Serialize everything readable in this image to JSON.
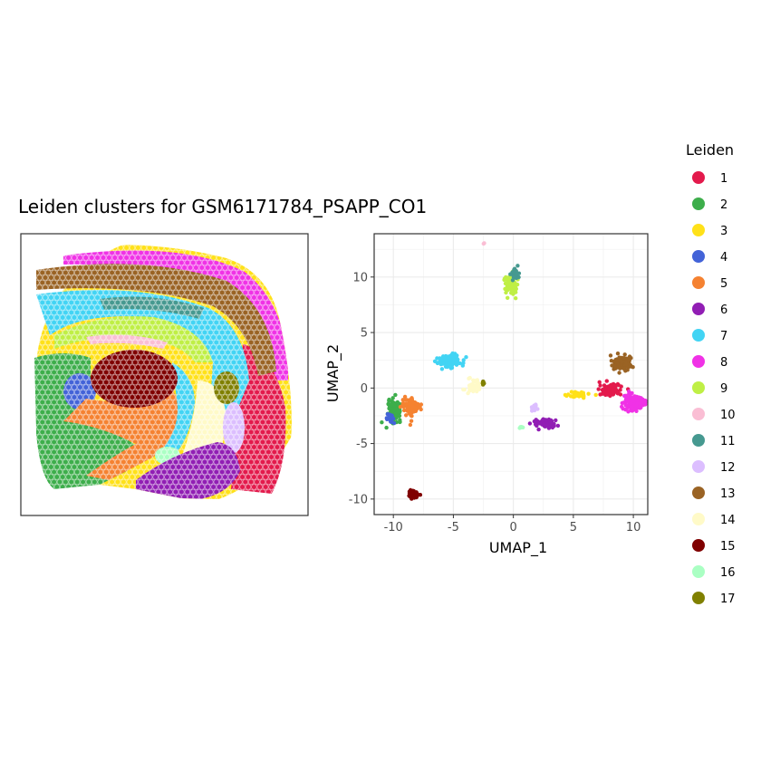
{
  "chart_data": [
    {
      "type": "scatter",
      "panel": "spatial",
      "title": "Leiden clusters for GSM6171784_PSAPP_CO1",
      "xlabel": "",
      "ylabel": "",
      "grid": false,
      "axes_visible": false
    },
    {
      "type": "scatter",
      "panel": "umap",
      "title": "",
      "xlabel": "UMAP_1",
      "ylabel": "UMAP_2",
      "xlim": [
        -11.6,
        11.2
      ],
      "ylim": [
        -11.4,
        13.9
      ],
      "x_ticks": [
        -10,
        -5,
        0,
        5,
        10
      ],
      "y_ticks": [
        -10,
        -5,
        0,
        5,
        10
      ],
      "grid": true,
      "clusters": [
        {
          "id": "1",
          "center": [
            8.0,
            -0.2
          ],
          "spread": [
            0.8,
            0.5
          ],
          "n": 160
        },
        {
          "id": "2",
          "center": [
            -9.9,
            -2.0
          ],
          "spread": [
            0.5,
            0.9
          ],
          "n": 130
        },
        {
          "id": "3",
          "center": [
            5.3,
            -0.6
          ],
          "spread": [
            1.0,
            0.25
          ],
          "n": 40
        },
        {
          "id": "4",
          "center": [
            -10.2,
            -2.8
          ],
          "spread": [
            0.3,
            0.4
          ],
          "n": 30
        },
        {
          "id": "5",
          "center": [
            -8.5,
            -1.7
          ],
          "spread": [
            0.8,
            0.8
          ],
          "n": 90
        },
        {
          "id": "6",
          "center": [
            2.6,
            -3.2
          ],
          "spread": [
            1.0,
            0.5
          ],
          "n": 60
        },
        {
          "id": "7",
          "center": [
            -5.3,
            2.5
          ],
          "spread": [
            1.0,
            0.6
          ],
          "n": 110
        },
        {
          "id": "8",
          "center": [
            10.0,
            -1.3
          ],
          "spread": [
            0.8,
            0.7
          ],
          "n": 150
        },
        {
          "id": "9",
          "center": [
            -0.2,
            9.3
          ],
          "spread": [
            0.5,
            0.9
          ],
          "n": 70
        },
        {
          "id": "10",
          "center": [
            -2.4,
            13.1
          ],
          "spread": [
            0.1,
            0.1
          ],
          "n": 2
        },
        {
          "id": "11",
          "center": [
            0.2,
            10.3
          ],
          "spread": [
            0.4,
            0.5
          ],
          "n": 30
        },
        {
          "id": "12",
          "center": [
            1.7,
            -1.8
          ],
          "spread": [
            0.3,
            0.3
          ],
          "n": 15
        },
        {
          "id": "13",
          "center": [
            9.0,
            2.2
          ],
          "spread": [
            0.9,
            0.6
          ],
          "n": 110
        },
        {
          "id": "14",
          "center": [
            -3.3,
            0.2
          ],
          "spread": [
            0.6,
            0.6
          ],
          "n": 45
        },
        {
          "id": "15",
          "center": [
            -8.3,
            -9.6
          ],
          "spread": [
            0.4,
            0.35
          ],
          "n": 60
        },
        {
          "id": "16",
          "center": [
            0.6,
            -3.6
          ],
          "spread": [
            0.2,
            0.2
          ],
          "n": 6
        },
        {
          "id": "17",
          "center": [
            -2.5,
            0.4
          ],
          "spread": [
            0.1,
            0.2
          ],
          "n": 6
        }
      ]
    }
  ],
  "legend": {
    "title": "Leiden",
    "placement": "right",
    "items": [
      {
        "label": "1",
        "color": "#E31A4C"
      },
      {
        "label": "2",
        "color": "#3DAE4B"
      },
      {
        "label": "3",
        "color": "#FFE119"
      },
      {
        "label": "4",
        "color": "#4363D8"
      },
      {
        "label": "5",
        "color": "#F58231"
      },
      {
        "label": "6",
        "color": "#911EB4"
      },
      {
        "label": "7",
        "color": "#42D4F4"
      },
      {
        "label": "8",
        "color": "#F032E6"
      },
      {
        "label": "9",
        "color": "#BFEF45"
      },
      {
        "label": "10",
        "color": "#FABED4"
      },
      {
        "label": "11",
        "color": "#469990"
      },
      {
        "label": "12",
        "color": "#DCBEFF"
      },
      {
        "label": "13",
        "color": "#9A6324"
      },
      {
        "label": "14",
        "color": "#FFFAC8"
      },
      {
        "label": "15",
        "color": "#800000"
      },
      {
        "label": "16",
        "color": "#AAFFC3"
      },
      {
        "label": "17",
        "color": "#808000"
      }
    ]
  }
}
